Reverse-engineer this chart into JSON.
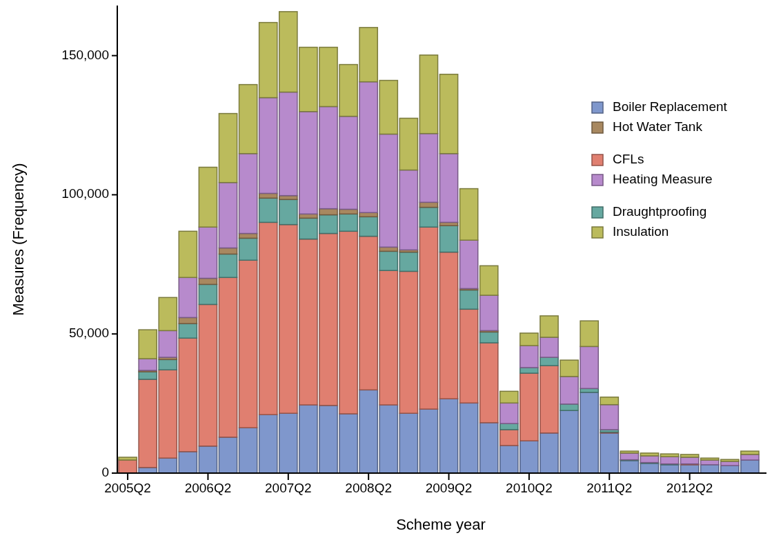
{
  "chart_data": {
    "type": "bar",
    "stacked": true,
    "xlabel": "Scheme year",
    "ylabel": "Measures (Frequency)",
    "categories": [
      "2005Q2",
      null,
      null,
      null,
      "2006Q2",
      null,
      null,
      null,
      "2007Q2",
      null,
      null,
      null,
      "2008Q2",
      null,
      null,
      null,
      "2009Q2",
      null,
      null,
      null,
      "2010Q2",
      null,
      null,
      null,
      "2011Q2",
      null,
      null,
      null,
      "2012Q2",
      null,
      null,
      null
    ],
    "ylim": [
      0,
      168000
    ],
    "yticks": [
      0,
      {
        "value": 50000,
        "label": "50,000"
      },
      {
        "value": 100000,
        "label": "100,000"
      },
      {
        "value": 150000,
        "label": "150,000"
      }
    ],
    "grid": false,
    "legend": "top right",
    "series": [
      {
        "name": "Boiler Replacement",
        "color": "#7f97cc",
        "values": [
          0,
          2000,
          5400,
          7700,
          9700,
          12900,
          16300,
          21000,
          21500,
          24500,
          24300,
          21300,
          29900,
          24500,
          21500,
          23000,
          26700,
          25200,
          18100,
          9900,
          11600,
          14400,
          22500,
          29000,
          14400,
          4500,
          3500,
          3000,
          3000,
          3000,
          2700,
          4700
        ]
      },
      {
        "name": "CFLs",
        "color": "#e07f70",
        "values": [
          4700,
          31700,
          31700,
          40800,
          50900,
          57400,
          60200,
          69100,
          67800,
          59600,
          61800,
          65600,
          55200,
          48300,
          51000,
          65400,
          52700,
          33700,
          28700,
          5700,
          24300,
          24200,
          0,
          0,
          300,
          0,
          0,
          0,
          300,
          0,
          0,
          0
        ]
      },
      {
        "name": "Draughtproofing",
        "color": "#66a8a0",
        "values": [
          0,
          2700,
          3700,
          5200,
          7200,
          8400,
          7900,
          8700,
          9000,
          7500,
          6700,
          6200,
          7000,
          6900,
          6900,
          7100,
          9500,
          6900,
          3900,
          2200,
          2000,
          3000,
          2300,
          1400,
          900,
          300,
          300,
          300,
          0,
          0,
          0,
          0
        ]
      },
      {
        "name": "Hot Water Tank",
        "color": "#a88860",
        "values": [
          0,
          500,
          800,
          2200,
          2200,
          2200,
          1700,
          1700,
          1400,
          1500,
          2200,
          1700,
          1500,
          1500,
          800,
          1800,
          1200,
          500,
          500,
          null,
          null,
          null,
          0,
          0,
          0,
          0,
          0,
          0,
          0,
          0,
          0,
          0
        ]
      },
      {
        "name": "Heating Measure",
        "color": "#b78acc",
        "values": [
          0,
          4200,
          9600,
          14400,
          18400,
          23500,
          28700,
          34400,
          37200,
          36800,
          36700,
          33400,
          47000,
          40600,
          28700,
          24700,
          24700,
          17400,
          12700,
          7400,
          7900,
          7200,
          9900,
          15100,
          9000,
          2400,
          2400,
          2600,
          2400,
          1700,
          1500,
          2000
        ]
      },
      {
        "name": "Insulation",
        "color": "#bbbb5c",
        "values": [
          1000,
          10400,
          11900,
          16600,
          21500,
          24800,
          24800,
          27000,
          28900,
          23100,
          21300,
          18600,
          19500,
          19300,
          18600,
          28200,
          28500,
          18500,
          10600,
          4200,
          4500,
          7700,
          5900,
          9200,
          2700,
          700,
          1000,
          1000,
          1000,
          700,
          700,
          1200
        ]
      }
    ]
  }
}
